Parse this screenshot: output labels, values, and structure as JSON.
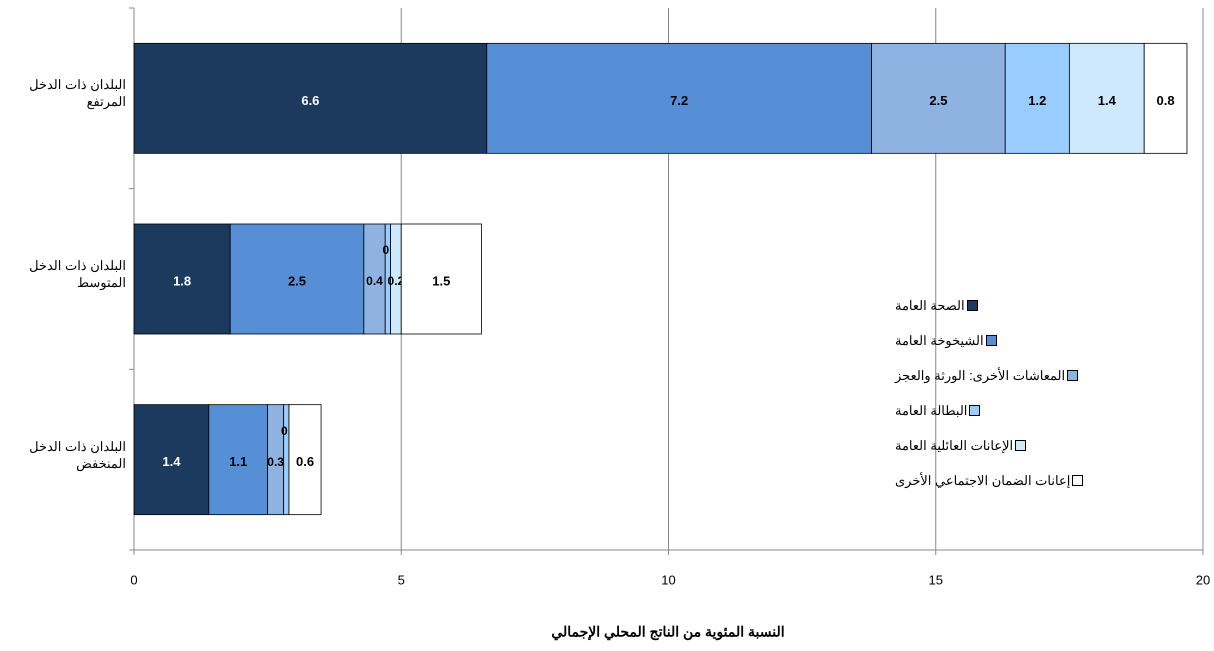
{
  "chart_data": {
    "type": "stacked-barh",
    "xlabel": "النسبة المئوية من الناتج المحلي الإجمالي",
    "categories": [
      "البلدان ذات الدخل المرتفع",
      "البلدان ذات الدخل المتوسط",
      "البلدان ذات الدخل المنخفض"
    ],
    "series": [
      {
        "name": "الصحة العامة",
        "color": "#1b3a5e",
        "values": [
          6.6,
          1.8,
          1.4
        ]
      },
      {
        "name": "الشيخوخة العامة",
        "color": "#568fd6",
        "values": [
          7.2,
          2.5,
          1.1
        ]
      },
      {
        "name": "المعاشات الأخرى: الورثة والعجز",
        "color": "#8eb2e2",
        "values": [
          2.5,
          0.4,
          0.3
        ]
      },
      {
        "name": "البطالة العامة",
        "color": "#99ccff",
        "values": [
          1.2,
          0.1,
          0.1
        ]
      },
      {
        "name": "الإعانات العائلية العامة",
        "color": "#cde9fb",
        "values": [
          1.4,
          0.2,
          null
        ]
      },
      {
        "name": "إعانات الضمان الاجتماعي الأخرى",
        "color": "#ffffff",
        "values": [
          0.8,
          1.5,
          0.6
        ]
      }
    ],
    "xlim": [
      0,
      20
    ],
    "xticks": [
      0,
      5,
      10,
      15,
      20
    ],
    "grid": true
  }
}
